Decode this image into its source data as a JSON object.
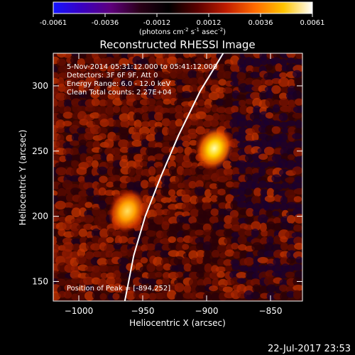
{
  "colorbar": {
    "ticks": [
      "-0.0061",
      "-0.0036",
      "-0.0012",
      "0.0012",
      "0.0036",
      "0.0061"
    ],
    "units_prefix": "(photons cm",
    "units_exp1": "-2",
    "units_mid1": " s",
    "units_exp2": "-1",
    "units_mid2": " asec",
    "units_exp3": "-2",
    "units_suffix": ")",
    "range": [
      -0.0061,
      0.0061
    ],
    "stops": [
      "#1414ff",
      "#3a00c0",
      "#5e007c",
      "#2a0018",
      "#000000",
      "#5a0000",
      "#c01c00",
      "#ff6a00",
      "#ffc400",
      "#ffffff"
    ]
  },
  "chart_data": {
    "type": "heatmap",
    "title": "Reconstructed RHESSI Image",
    "xlabel": "Heliocentric X (arcsec)",
    "ylabel": "Heliocentric Y (arcsec)",
    "xlim": [
      -1020,
      -825
    ],
    "ylim": [
      135,
      325
    ],
    "x_ticks": [
      -1000,
      -950,
      -900,
      -850
    ],
    "y_ticks": [
      150,
      200,
      250,
      300
    ],
    "x_tick_labels": [
      "−1000",
      "−950",
      "−900",
      "−850"
    ],
    "y_tick_labels": [
      "150",
      "200",
      "250",
      "300"
    ],
    "sources": [
      {
        "x": -894,
        "y": 252
      },
      {
        "x": -962,
        "y": 204
      }
    ],
    "limb": [
      [
        -887,
        325
      ],
      [
        -905,
        296
      ],
      [
        -922,
        262
      ],
      [
        -936,
        230
      ],
      [
        -948,
        200
      ],
      [
        -957,
        170
      ],
      [
        -964,
        135
      ]
    ],
    "limb_color": "#ffffff",
    "annotations": [
      "5-Nov-2014 05:31:12.000 to 05:41:12.000",
      "Detectors: 3F 6F 9F, Att 0",
      "Energy Range: 6.0 - 12.0 keV",
      "Clean    Total counts: 2.27E+04"
    ],
    "peak_label": "Position of Peak = [-894,252]"
  },
  "footer": {
    "timestamp": "22-Jul-2017 23:53"
  }
}
